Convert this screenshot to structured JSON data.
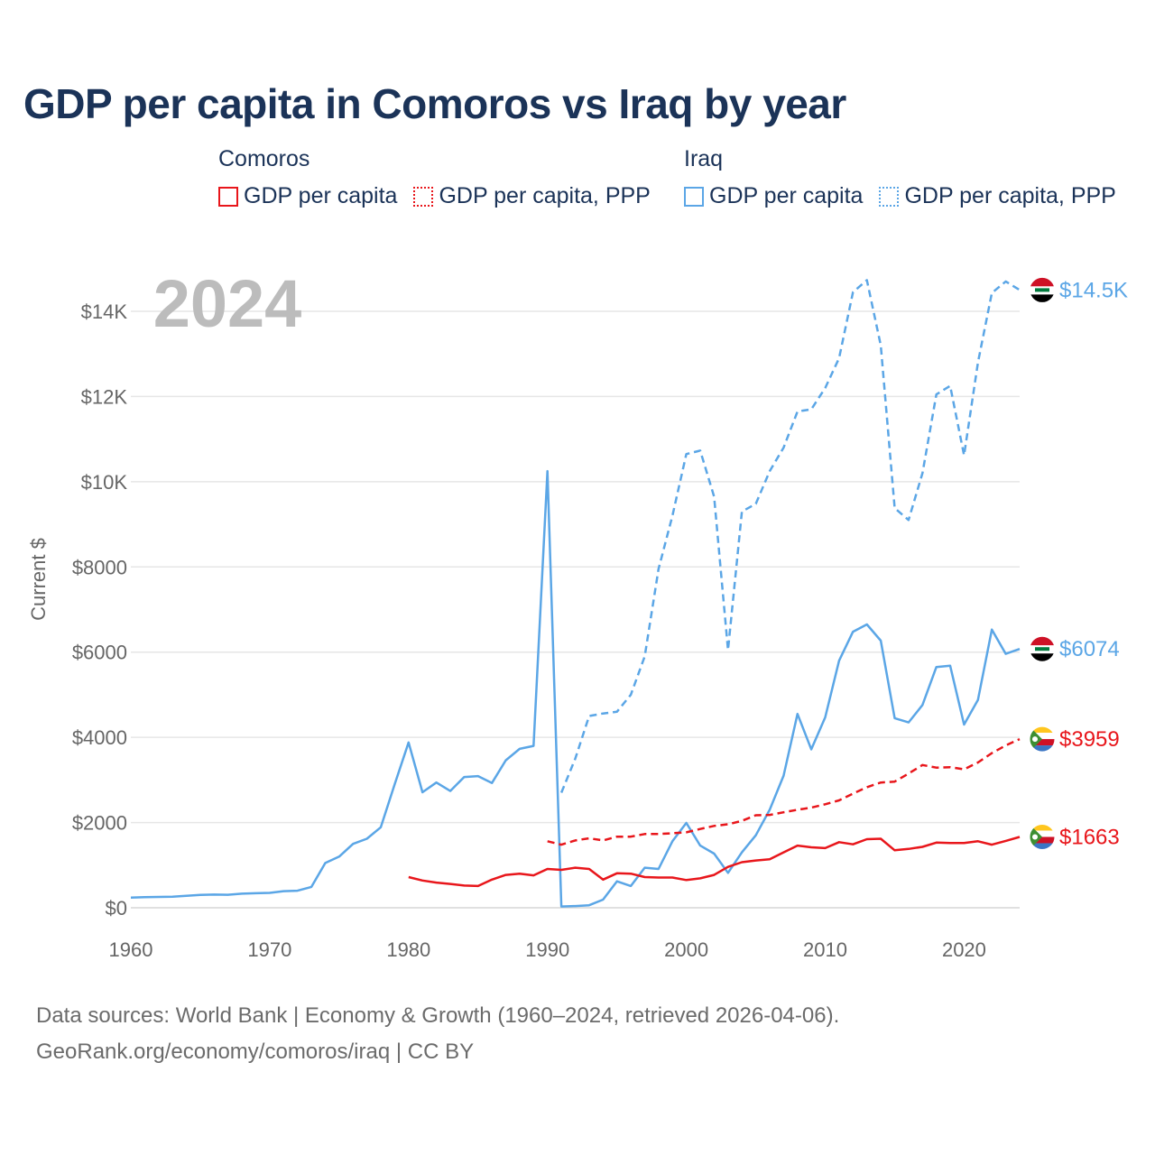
{
  "title": "GDP per capita in Comoros vs Iraq by year",
  "legend": {
    "groups": [
      {
        "name": "Comoros",
        "color": "#e8161b",
        "items": [
          {
            "label": "GDP per capita",
            "style": "solid"
          },
          {
            "label": "GDP per capita, PPP",
            "style": "dotted"
          }
        ]
      },
      {
        "name": "Iraq",
        "color": "#5ba6e6",
        "items": [
          {
            "label": "GDP per capita",
            "style": "solid"
          },
          {
            "label": "GDP per capita, PPP",
            "style": "dotted"
          }
        ]
      }
    ]
  },
  "source": {
    "line1": "Data sources: World Bank | Economy & Growth (1960–2024, retrieved 2026-04-06).",
    "line2": "GeoRank.org/economy/comoros/iraq | CC BY"
  },
  "chart_data": {
    "type": "line",
    "title": "GDP per capita in Comoros vs Iraq by year",
    "year_label": "2024",
    "xlabel": "",
    "ylabel": "Current $",
    "xlim": [
      1960,
      2024
    ],
    "ylim": [
      0,
      15000
    ],
    "x_ticks": [
      1960,
      1970,
      1980,
      1990,
      2000,
      2010,
      2020
    ],
    "y_ticks": [
      {
        "value": 0,
        "label": "$0"
      },
      {
        "value": 2000,
        "label": "$2000"
      },
      {
        "value": 4000,
        "label": "$4000"
      },
      {
        "value": 6000,
        "label": "$6000"
      },
      {
        "value": 8000,
        "label": "$8000"
      },
      {
        "value": 10000,
        "label": "$10K"
      },
      {
        "value": 12000,
        "label": "$12K"
      },
      {
        "value": 14000,
        "label": "$14K"
      }
    ],
    "grid": true,
    "series": [
      {
        "name": "Iraq GDP per capita, PPP",
        "color": "#5ba6e6",
        "dash": "8,5",
        "end_label": "$14.5K",
        "flag": "iraq",
        "x": [
          1991,
          1992,
          1993,
          1994,
          1995,
          1996,
          1997,
          1998,
          1999,
          2000,
          2001,
          2002,
          2003,
          2004,
          2005,
          2006,
          2007,
          2008,
          2009,
          2010,
          2011,
          2012,
          2013,
          2014,
          2015,
          2016,
          2017,
          2018,
          2019,
          2020,
          2021,
          2022,
          2023,
          2024
        ],
        "values": [
          2700,
          3500,
          4500,
          4560,
          4600,
          5000,
          5900,
          7950,
          9200,
          10650,
          10730,
          9650,
          6050,
          9300,
          9480,
          10250,
          10800,
          11650,
          11700,
          12200,
          12900,
          14450,
          14730,
          13200,
          9380,
          9100,
          10200,
          12050,
          12250,
          10620,
          12800,
          14430,
          14700,
          14500
        ]
      },
      {
        "name": "Iraq GDP per capita",
        "color": "#5ba6e6",
        "dash": "",
        "end_label": "$6074",
        "flag": "iraq",
        "x": [
          1960,
          1961,
          1962,
          1963,
          1964,
          1965,
          1966,
          1967,
          1968,
          1969,
          1970,
          1971,
          1972,
          1973,
          1974,
          1975,
          1976,
          1977,
          1978,
          1979,
          1980,
          1981,
          1982,
          1983,
          1984,
          1985,
          1986,
          1987,
          1988,
          1989,
          1990,
          1991,
          1992,
          1993,
          1994,
          1995,
          1996,
          1997,
          1998,
          1999,
          2000,
          2001,
          2002,
          2003,
          2004,
          2005,
          2006,
          2007,
          2008,
          2009,
          2010,
          2011,
          2012,
          2013,
          2014,
          2015,
          2016,
          2017,
          2018,
          2019,
          2020,
          2021,
          2022,
          2023,
          2024
        ],
        "values": [
          240,
          250,
          255,
          258,
          280,
          300,
          310,
          305,
          330,
          340,
          350,
          390,
          400,
          490,
          1050,
          1200,
          1500,
          1620,
          1890,
          2900,
          3880,
          2710,
          2940,
          2740,
          3070,
          3090,
          2930,
          3460,
          3730,
          3800,
          10250,
          30,
          40,
          60,
          190,
          620,
          510,
          940,
          910,
          1560,
          1990,
          1460,
          1270,
          820,
          1300,
          1700,
          2300,
          3100,
          4550,
          3720,
          4470,
          5800,
          6480,
          6650,
          6270,
          4450,
          4350,
          4760,
          5650,
          5680,
          4300,
          4880,
          6530,
          5960,
          6074
        ]
      },
      {
        "name": "Comoros GDP per capita, PPP",
        "color": "#e8161b",
        "dash": "8,5",
        "end_label": "$3959",
        "flag": "comoros",
        "x": [
          1990,
          1991,
          1992,
          1993,
          1994,
          1995,
          1996,
          1997,
          1998,
          1999,
          2000,
          2001,
          2002,
          2003,
          2004,
          2005,
          2006,
          2007,
          2008,
          2009,
          2010,
          2011,
          2012,
          2013,
          2014,
          2015,
          2016,
          2017,
          2018,
          2019,
          2020,
          2021,
          2022,
          2023,
          2024
        ],
        "values": [
          1560,
          1480,
          1580,
          1630,
          1580,
          1670,
          1670,
          1730,
          1730,
          1750,
          1770,
          1850,
          1920,
          1960,
          2040,
          2170,
          2180,
          2240,
          2300,
          2350,
          2430,
          2520,
          2680,
          2830,
          2940,
          2960,
          3150,
          3350,
          3290,
          3300,
          3250,
          3410,
          3630,
          3810,
          3959
        ]
      },
      {
        "name": "Comoros GDP per capita",
        "color": "#e8161b",
        "dash": "",
        "end_label": "$1663",
        "flag": "comoros",
        "x": [
          1980,
          1981,
          1982,
          1983,
          1984,
          1985,
          1986,
          1987,
          1988,
          1989,
          1990,
          1991,
          1992,
          1993,
          1994,
          1995,
          1996,
          1997,
          1998,
          1999,
          2000,
          2001,
          2002,
          2003,
          2004,
          2005,
          2006,
          2007,
          2008,
          2009,
          2010,
          2011,
          2012,
          2013,
          2014,
          2015,
          2016,
          2017,
          2018,
          2019,
          2020,
          2021,
          2022,
          2023,
          2024
        ],
        "values": [
          720,
          640,
          590,
          560,
          520,
          510,
          660,
          770,
          800,
          760,
          910,
          890,
          940,
          910,
          660,
          810,
          800,
          720,
          710,
          710,
          650,
          690,
          770,
          960,
          1070,
          1110,
          1140,
          1300,
          1460,
          1420,
          1400,
          1540,
          1490,
          1610,
          1620,
          1350,
          1380,
          1430,
          1530,
          1520,
          1520,
          1560,
          1480,
          1570,
          1663
        ]
      }
    ]
  }
}
